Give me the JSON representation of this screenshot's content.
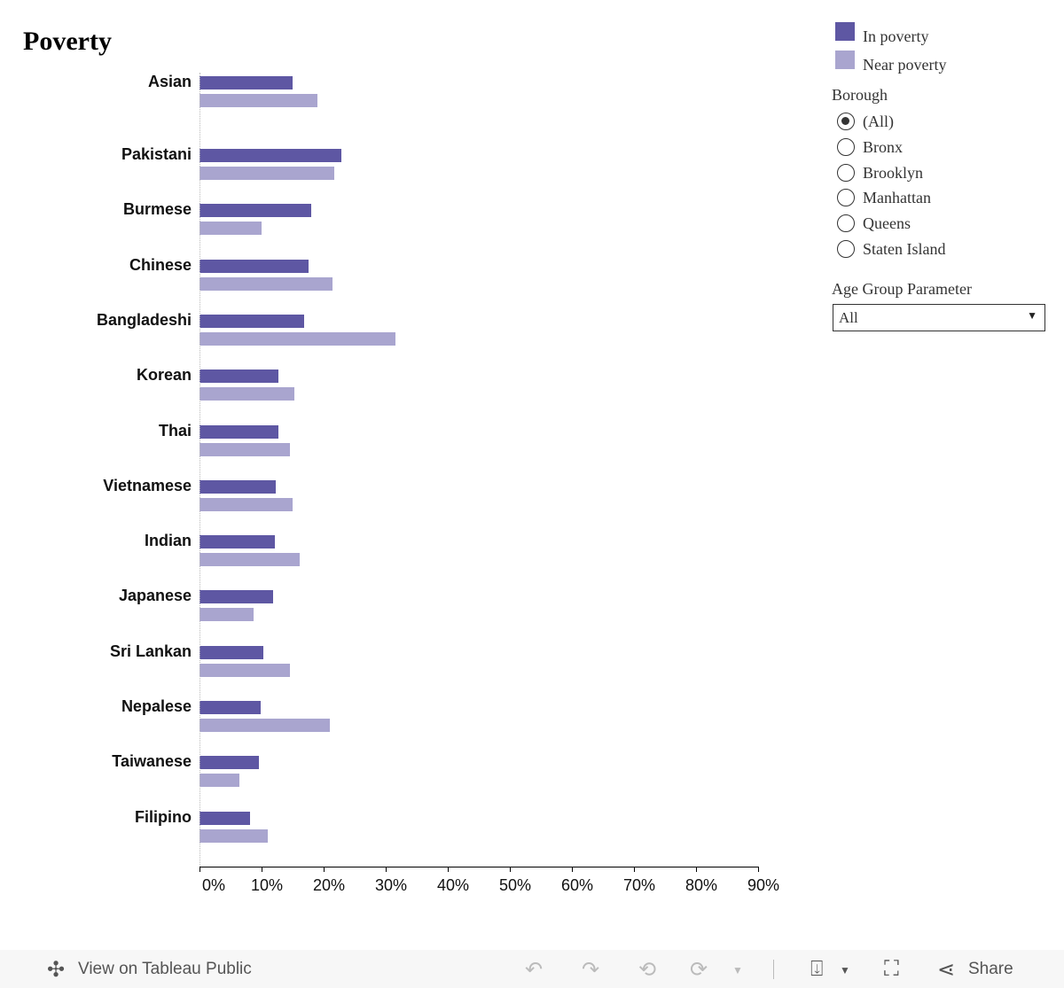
{
  "chart_data": {
    "type": "bar",
    "orientation": "horizontal",
    "title": "Poverty",
    "categories": [
      "Asian",
      "Pakistani",
      "Burmese",
      "Chinese",
      "Bangladeshi",
      "Korean",
      "Thai",
      "Vietnamese",
      "Indian",
      "Japanese",
      "Sri Lankan",
      "Nepalese",
      "Taiwanese",
      "Filipino"
    ],
    "series": [
      {
        "name": "In poverty",
        "color": "#5e57a3",
        "values": [
          15.0,
          22.9,
          18.0,
          17.6,
          16.9,
          12.7,
          12.7,
          12.3,
          12.1,
          11.9,
          10.3,
          9.9,
          9.6,
          8.1
        ]
      },
      {
        "name": "Near poverty",
        "color": "#a9a5cf",
        "values": [
          19.0,
          21.7,
          10.0,
          21.4,
          31.6,
          15.3,
          14.6,
          15.0,
          16.1,
          8.7,
          14.6,
          21.0,
          6.4,
          11.0
        ]
      }
    ],
    "xlim": [
      0,
      90
    ],
    "x_ticks": [
      "0%",
      "10%",
      "20%",
      "30%",
      "40%",
      "50%",
      "60%",
      "70%",
      "80%",
      "90%"
    ],
    "legend_placement": "top-right",
    "grid": false
  },
  "filters": {
    "borough_label": "Borough",
    "borough_options": [
      "(All)",
      "Bronx",
      "Brooklyn",
      "Manhattan",
      "Queens",
      "Staten Island"
    ],
    "borough_selected": "(All)",
    "age_label": "Age Group Parameter",
    "age_value": "All"
  },
  "footer": {
    "view_label": "View on Tableau Public",
    "share_label": "Share"
  }
}
